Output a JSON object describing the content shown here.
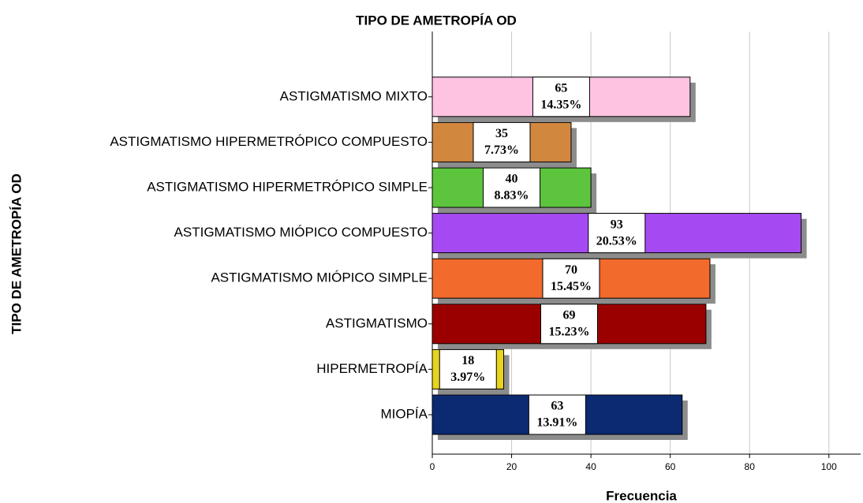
{
  "chart_data": {
    "type": "bar",
    "orientation": "horizontal",
    "title": "TIPO DE AMETROPÍA OD",
    "x_label": "Frecuencia",
    "y_label": "TIPO DE AMETROPÍA OD",
    "categories": [
      "ASTIGMATISMO MIXTO",
      "ASTIGMATISMO HIPERMETRÓPICO COMPUESTO",
      "ASTIGMATISMO HIPERMETRÓPICO SIMPLE",
      "ASTIGMATISMO MIÓPICO COMPUESTO",
      "ASTIGMATISMO MIÓPICO SIMPLE",
      "ASTIGMATISMO",
      "HIPERMETROPÍA",
      "MIOPÍA"
    ],
    "values": [
      65,
      35,
      40,
      93,
      70,
      69,
      18,
      63
    ],
    "percent_labels": [
      "14.35%",
      "7.73%",
      "8.83%",
      "20.53%",
      "15.45%",
      "15.23%",
      "3.97%",
      "13.91%"
    ],
    "colors": [
      "#fdc3e1",
      "#d2873f",
      "#5dc53d",
      "#a54af2",
      "#f26a2c",
      "#9b0000",
      "#e8d31d",
      "#0b2a72"
    ],
    "xlim": [
      0,
      108
    ],
    "xticks": [
      0,
      20,
      40,
      60,
      80,
      100
    ],
    "grid": true
  }
}
